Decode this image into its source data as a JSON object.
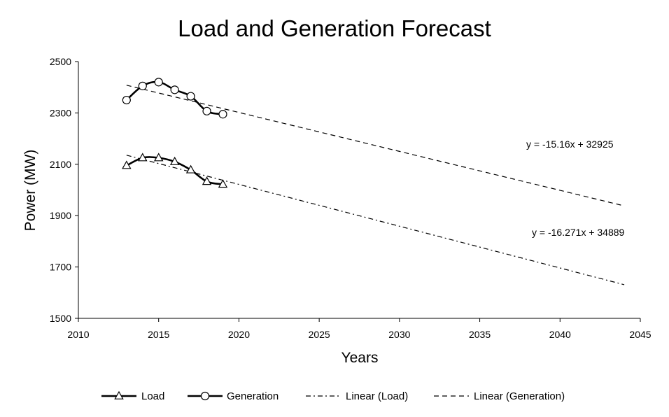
{
  "chart_data": {
    "type": "line",
    "title": "Load and Generation Forecast",
    "xlabel": "Years",
    "ylabel": "Power (MW)",
    "xlim": [
      2010,
      2045
    ],
    "ylim": [
      1500,
      2500
    ],
    "xticks": [
      2010,
      2015,
      2020,
      2025,
      2030,
      2035,
      2040,
      2045
    ],
    "yticks": [
      1500,
      1700,
      1900,
      2100,
      2300,
      2500
    ],
    "grid": false,
    "legend_position": "bottom",
    "series": [
      {
        "name": "Load",
        "marker": "triangle",
        "x": [
          2013,
          2014,
          2015,
          2016,
          2017,
          2018,
          2019
        ],
        "y": [
          2095,
          2125,
          2125,
          2110,
          2078,
          2033,
          2022
        ]
      },
      {
        "name": "Generation",
        "marker": "circle",
        "x": [
          2013,
          2014,
          2015,
          2016,
          2017,
          2018,
          2019
        ],
        "y": [
          2350,
          2405,
          2420,
          2390,
          2365,
          2307,
          2295
        ]
      }
    ],
    "trendlines": [
      {
        "name": "Linear (Load)",
        "style": "dash-dot",
        "slope": -16.271,
        "intercept": 34889,
        "x_range": [
          2013,
          2044
        ],
        "equation": "y = -16.271x + 34889"
      },
      {
        "name": "Linear (Generation)",
        "style": "dashed",
        "slope": -15.16,
        "intercept": 32925,
        "x_range": [
          2013,
          2044
        ],
        "equation": "y = -15.16x + 32925"
      }
    ]
  }
}
